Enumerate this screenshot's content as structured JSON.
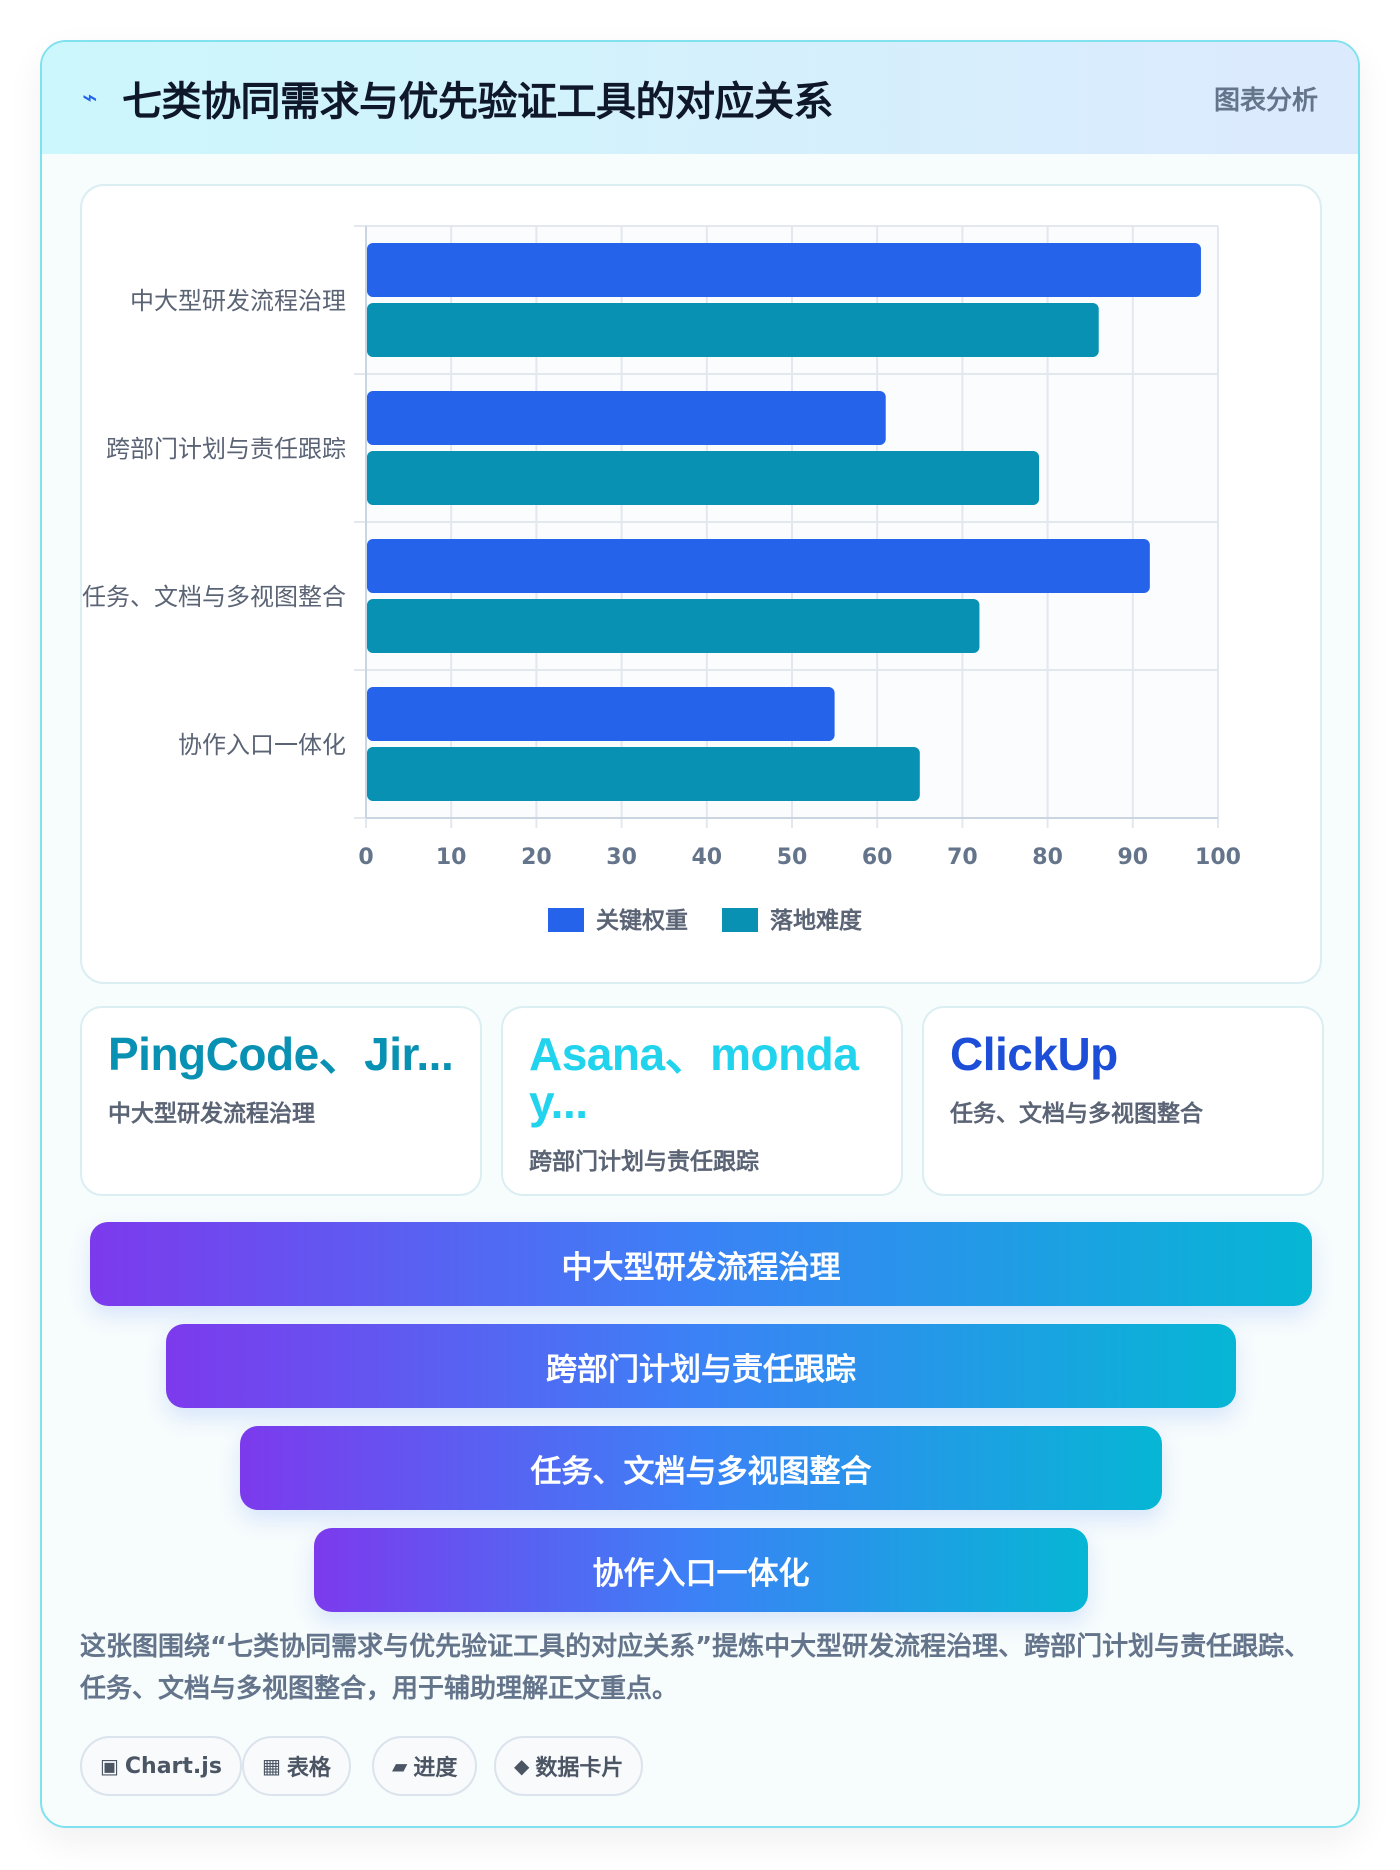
{
  "header": {
    "title": "七类协同需求与优先验证工具的对应关系",
    "tag": "图表分析",
    "icon": "bolt-icon"
  },
  "chart_data": {
    "type": "bar",
    "orientation": "horizontal",
    "categories": [
      "中大型研发流程治理",
      "跨部门计划与责任跟踪",
      "任务、文档与多视图整合",
      "协作入口一体化"
    ],
    "series": [
      {
        "name": "关键权重",
        "values": [
          98,
          61,
          92,
          55
        ],
        "color": "#2563eb"
      },
      {
        "name": "落地难度",
        "values": [
          86,
          79,
          72,
          65
        ],
        "color": "#0891b2"
      }
    ],
    "xlim": [
      0,
      100
    ],
    "xticks": [
      0,
      10,
      20,
      30,
      40,
      50,
      60,
      70,
      80,
      90,
      100
    ],
    "grid": true,
    "legend": "bottom"
  },
  "stats": [
    {
      "value": "PingCode、Jir...",
      "desc": "中大型研发流程治理",
      "color": "#0891b2"
    },
    {
      "value": "Asana、monday...",
      "desc": "跨部门计划与责任跟踪",
      "color": "#22d3ee"
    },
    {
      "value": "ClickUp",
      "desc": "任务、文档与多视图整合",
      "color": "#1d4ed8"
    }
  ],
  "funnel": [
    "中大型研发流程治理",
    "跨部门计划与责任跟踪",
    "任务、文档与多视图整合",
    "协作入口一体化"
  ],
  "summary": "这张图围绕“七类协同需求与优先验证工具的对应关系”提炼中大型研发流程治理、跨部门计划与责任跟踪、任务、文档与多视图整合，用于辅助理解正文重点。",
  "chips": [
    {
      "icon": "▣",
      "label": "Chart.js"
    },
    {
      "icon": "▦",
      "label": "表格"
    },
    {
      "icon": "▰",
      "label": "进度"
    },
    {
      "icon": "◆",
      "label": "数据卡片"
    }
  ]
}
